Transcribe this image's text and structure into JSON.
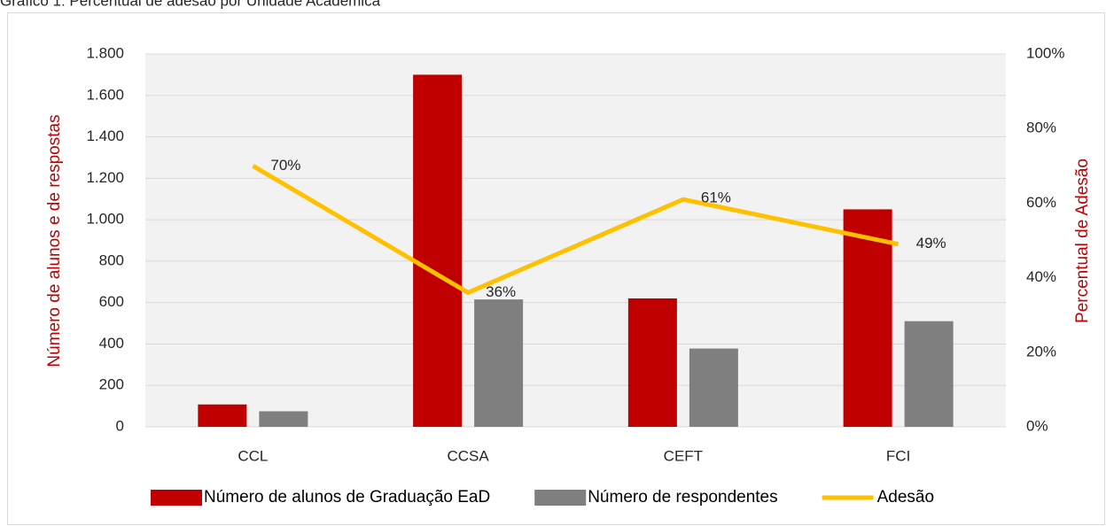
{
  "chart_data": {
    "type": "bar-line",
    "title": "Gráfico 1: Percentual de adesão por Unidade Acadêmica",
    "categories": [
      "CCL",
      "CCSA",
      "CEFT",
      "FCI"
    ],
    "series": [
      {
        "name": "Número de alunos de Graduação EaD",
        "color": "#c00000",
        "type": "bar",
        "values": [
          108,
          1700,
          620,
          1050
        ]
      },
      {
        "name": "Número de respondentes",
        "color": "#7f7f7f",
        "type": "bar",
        "values": [
          75,
          615,
          378,
          510
        ]
      },
      {
        "name": "Adesão",
        "color": "#ffc000",
        "type": "line",
        "axis": "y2",
        "values": [
          70,
          36,
          61,
          49
        ],
        "value_labels": [
          "70%",
          "36%",
          "61%",
          "49%"
        ]
      }
    ],
    "ylabel": "Número de alunos e de respostas",
    "y2label": "Percentual de Adesão",
    "ylim": [
      0,
      1800
    ],
    "yticks": [
      0,
      200,
      400,
      600,
      800,
      {
        "value": 1000,
        "label": "1.000"
      },
      {
        "value": 1200,
        "label": "1.200"
      },
      {
        "value": 1400,
        "label": "1.400"
      },
      {
        "value": 1600,
        "label": "1.600"
      },
      {
        "value": 1800,
        "label": "1.800"
      }
    ],
    "y2lim": [
      0,
      100
    ],
    "y2ticks": [
      {
        "value": 0,
        "label": "0%"
      },
      {
        "value": 20,
        "label": "20%"
      },
      {
        "value": 40,
        "label": "40%"
      },
      {
        "value": 60,
        "label": "60%"
      },
      {
        "value": 80,
        "label": "80%"
      },
      {
        "value": 100,
        "label": "100%"
      }
    ],
    "grid": true,
    "legend": "bottom"
  }
}
